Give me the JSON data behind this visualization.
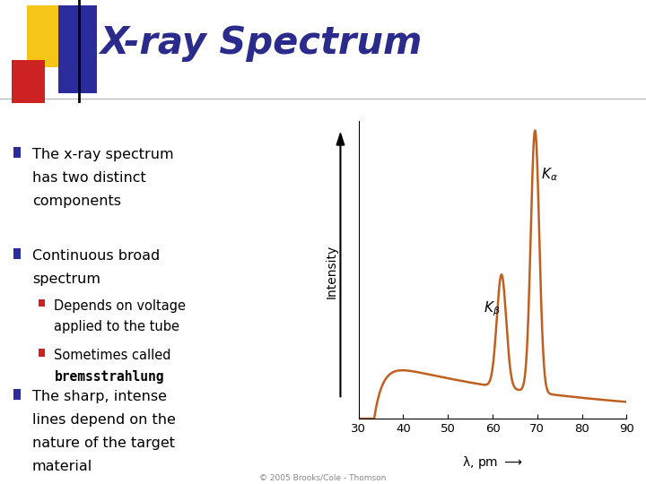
{
  "title": "X-ray Spectrum",
  "title_color": "#2B2B8C",
  "bg_color": "#FFFFFF",
  "bullet1_line1": "The x-ray spectrum",
  "bullet1_line2": "has two distinct",
  "bullet1_line3": "components",
  "bullet2_line1": "Continuous broad",
  "bullet2_line2": "spectrum",
  "sub1_line1": "Depends on voltage",
  "sub1_line2": "applied to the tube",
  "sub2_line1": "Sometimes called",
  "sub2_line2_bold": "bremsstrahlung",
  "bullet3_line1": "The sharp, intense",
  "bullet3_line2": "lines depend on the",
  "bullet3_line3": "nature of the target",
  "bullet3_line4": "material",
  "curve_color": "#C06020",
  "xlabel": "λ, pm",
  "ylabel": "Intensity",
  "xmin": 30,
  "xmax": 90,
  "xticks": [
    30,
    40,
    50,
    60,
    70,
    80,
    90
  ],
  "logo_yellow": "#F5C518",
  "logo_red": "#CC2222",
  "logo_blue": "#2B2B9C",
  "copyright_text": "© 2005 Brooks/Cole - Thomson"
}
